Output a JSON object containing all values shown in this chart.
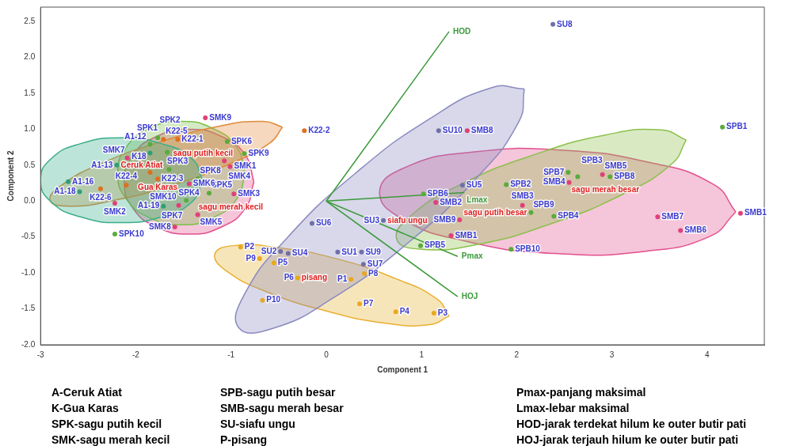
{
  "chart_data": {
    "type": "scatter",
    "xlabel": "Component 1",
    "ylabel": "Component 2",
    "xlim": [
      -3,
      4.6
    ],
    "xticks": [
      -3,
      -2,
      -1,
      0,
      1,
      2,
      3,
      4
    ],
    "ylim": [
      -2,
      2.7
    ],
    "yticks": [
      {
        "value": -2,
        "label": "-2.0"
      },
      {
        "value": -1.5,
        "label": "-1.5"
      },
      {
        "value": -1,
        "label": "-1.0"
      },
      {
        "value": -0.5,
        "label": "-0.5"
      },
      {
        "value": 0,
        "label": "0.0"
      },
      {
        "value": 0.5,
        "label": "0.5"
      },
      {
        "value": 1,
        "label": "1.0"
      },
      {
        "value": 1.5,
        "label": "1.5"
      },
      {
        "value": 2,
        "label": "2.0"
      },
      {
        "value": 2.5,
        "label": "2.5"
      }
    ],
    "series": [
      {
        "type": "area",
        "color": "#3aae8a",
        "x": [
          -1.3,
          -1.41,
          -1.73,
          -2.15,
          -2.58,
          -2.89,
          -3.0,
          -2.89,
          -2.58,
          -2.15,
          -1.73,
          -1.41,
          -1.3
        ],
        "values": [
          0.29,
          0.59,
          0.8,
          0.88,
          0.8,
          0.59,
          0.29,
          -0.01,
          -0.22,
          -0.3,
          -0.22,
          -0.01,
          0.29
        ]
      },
      {
        "type": "area",
        "color": "#e08a3a",
        "x": [
          -0.46,
          -0.59,
          -1.01,
          -1.62,
          -2.23,
          -2.7,
          -2.9,
          -2.77,
          -2.35,
          -1.75,
          -1.13,
          -0.66,
          -0.46
        ],
        "values": [
          1.03,
          0.81,
          0.52,
          0.22,
          0.01,
          -0.07,
          0.01,
          0.23,
          0.53,
          0.82,
          1.04,
          1.11,
          1.03
        ]
      },
      {
        "type": "area",
        "color": "#7cc04a",
        "x": [
          -0.85,
          -0.94,
          -1.19,
          -1.52,
          -1.86,
          -2.1,
          -2.19,
          -2.1,
          -1.86,
          -1.52,
          -1.19,
          -0.94,
          -0.85
        ],
        "values": [
          0.39,
          0.75,
          1.01,
          1.11,
          1.01,
          0.75,
          0.39,
          0.03,
          -0.23,
          -0.33,
          -0.23,
          0.03,
          0.39
        ]
      },
      {
        "type": "area",
        "color": "#e2508e",
        "x": [
          -0.76,
          -0.85,
          -1.1,
          -1.44,
          -1.78,
          -2.03,
          -2.12,
          -2.03,
          -1.78,
          -1.44,
          -1.1,
          -0.85,
          -0.76
        ],
        "values": [
          0.27,
          0.64,
          0.9,
          1.0,
          0.9,
          0.64,
          0.27,
          -0.1,
          -0.36,
          -0.46,
          -0.36,
          -0.1,
          0.27
        ]
      },
      {
        "type": "area",
        "color": "#8a8ac0",
        "x": [
          2.08,
          2.02,
          1.57,
          0.86,
          0.07,
          -0.58,
          -0.92,
          -0.86,
          -0.41,
          0.3,
          1.09,
          1.74,
          2.08
        ],
        "values": [
          1.56,
          1.1,
          0.31,
          -0.58,
          -1.35,
          -1.78,
          -1.76,
          -1.3,
          -0.51,
          0.38,
          1.15,
          1.58,
          1.56
        ]
      },
      {
        "type": "area",
        "color": "#e8b030",
        "x": [
          1.29,
          1.09,
          0.62,
          0.0,
          -0.61,
          -1.04,
          -1.17,
          -0.97,
          -0.5,
          0.13,
          0.73,
          1.16,
          1.29
        ],
        "values": [
          -1.6,
          -1.72,
          -1.7,
          -1.53,
          -1.27,
          -0.98,
          -0.74,
          -0.62,
          -0.65,
          -0.81,
          -1.08,
          -1.36,
          -1.6
        ]
      },
      {
        "type": "area",
        "color": "#8cc04a",
        "x": [
          3.78,
          3.63,
          3.12,
          2.37,
          1.6,
          1.0,
          0.74,
          0.89,
          1.41,
          2.15,
          2.93,
          3.52,
          3.78
        ],
        "values": [
          0.85,
          0.52,
          0.1,
          -0.31,
          -0.6,
          -0.67,
          -0.53,
          -0.2,
          0.23,
          0.63,
          0.92,
          0.99,
          0.85
        ]
      },
      {
        "type": "area",
        "color": "#e2508e",
        "x": [
          4.3,
          4.03,
          3.34,
          2.4,
          1.47,
          0.8,
          0.56,
          0.83,
          1.52,
          2.46,
          3.39,
          4.07,
          4.3
        ],
        "values": [
          -0.15,
          -0.49,
          -0.7,
          -0.73,
          -0.56,
          -0.25,
          0.13,
          0.47,
          0.68,
          0.71,
          0.54,
          0.23,
          -0.15
        ]
      },
      {
        "type": "line",
        "name": "HOD",
        "color": "#3a9a3a",
        "x": [
          0,
          1.29
        ],
        "values": [
          0,
          2.36
        ]
      },
      {
        "type": "line",
        "name": "Lmax",
        "color": "#3a9a3a",
        "x": [
          0,
          1.45
        ],
        "values": [
          0,
          0.12
        ]
      },
      {
        "type": "line",
        "name": "Pmax",
        "color": "#3a9a3a",
        "x": [
          0,
          1.38
        ],
        "values": [
          0,
          -0.77
        ]
      },
      {
        "type": "line",
        "name": "HOJ",
        "color": "#3a9a3a",
        "x": [
          0,
          1.38
        ],
        "values": [
          0,
          -1.33
        ]
      },
      {
        "name": "Ceruk Atiat",
        "marker": "circle",
        "color": "#2e9e78",
        "x": [
          -2.71,
          -2.59,
          -2.2,
          -1.85,
          -1.71
        ],
        "values": [
          0.27,
          0.13,
          0.5,
          0.67,
          -0.07
        ]
      },
      {
        "name": "Gua Karas",
        "marker": "circle",
        "color": "#e07020",
        "x": [
          -1.56,
          -1.71,
          -1.85,
          -1.77,
          -2.1,
          -2.37,
          -0.23
        ],
        "values": [
          0.86,
          0.86,
          0.4,
          0.31,
          0.22,
          0.17,
          0.98
        ]
      },
      {
        "name": "sagu putih kecil",
        "marker": "circle",
        "color": "#5aab3c",
        "x": [
          -1.67,
          -1.85,
          -1.77,
          -1.65,
          -1.23,
          -1.04,
          -1.47,
          -1.35,
          -0.86,
          -2.22
        ],
        "values": [
          0.68,
          0.79,
          0.88,
          0.44,
          0.11,
          0.83,
          0.01,
          0.31,
          0.66,
          -0.46
        ]
      },
      {
        "name": "sagu merah kecil",
        "marker": "circle",
        "color": "#e0407a",
        "x": [
          -1.01,
          -2.22,
          -0.97,
          -1.07,
          -1.35,
          -1.44,
          -2.09,
          -1.59,
          -1.27,
          -1.55
        ],
        "values": [
          0.48,
          -0.03,
          0.1,
          0.56,
          -0.19,
          0.24,
          0.6,
          -0.36,
          1.16,
          -0.06
        ]
      },
      {
        "name": "siafu ungu",
        "marker": "circle",
        "color": "#7070a8",
        "x": [
          0.12,
          -0.48,
          0.6,
          -0.4,
          1.43,
          -0.15,
          0.39,
          2.38,
          0.37,
          1.18
        ],
        "values": [
          -0.71,
          -0.7,
          -0.27,
          -0.73,
          0.22,
          -0.31,
          -0.88,
          2.46,
          -0.71,
          0.98
        ]
      },
      {
        "name": "pisang",
        "marker": "circle",
        "color": "#e8a820",
        "x": [
          0.26,
          -0.9,
          1.13,
          0.73,
          -0.55,
          -0.3,
          0.35,
          0.4,
          -0.7,
          -0.67
        ],
        "values": [
          -1.09,
          -0.64,
          -1.56,
          -1.54,
          -0.86,
          -1.07,
          -1.43,
          -1.01,
          -0.8,
          -1.38
        ]
      },
      {
        "name": "sagu putih besar",
        "marker": "circle",
        "color": "#5aab3c",
        "x": [
          4.16,
          1.89,
          2.64,
          2.39,
          0.99,
          1.02,
          2.54,
          2.98,
          2.15,
          1.94
        ],
        "values": [
          1.03,
          0.23,
          0.34,
          -0.21,
          -0.62,
          0.1,
          0.4,
          0.34,
          -0.16,
          -0.67
        ]
      },
      {
        "name": "sagu merah besar",
        "marker": "circle",
        "color": "#e0407a",
        "x": [
          1.31,
          1.15,
          2.06,
          2.55,
          2.9,
          3.72,
          3.48,
          1.48,
          1.4,
          4.35
        ],
        "values": [
          -0.48,
          -0.02,
          -0.06,
          0.26,
          0.37,
          -0.41,
          -0.22,
          0.98,
          -0.26,
          -0.17
        ]
      }
    ],
    "annotations": [
      "A-Ceruk Atiat",
      "K-Gua Karas",
      "SPK-sagu putih kecil",
      "SMK-sagu merah kecil",
      "SPB-sagu putih besar",
      "SMB-sagu merah besar",
      "SU-siafu ungu",
      "P-pisang",
      "Pmax-panjang maksimal",
      "Lmax-lebar maksimal",
      "HOD-jarak terdekat hilum ke outer butir pati",
      "HOJ-jarak terjauh hilum ke outer butir pati",
      {
        "text": "A1-16",
        "x": -2.71,
        "y": 0.27
      },
      {
        "text": "A1-18",
        "x": -2.59,
        "y": 0.13
      },
      {
        "text": "A1-13",
        "x": -2.2,
        "y": 0.5
      },
      {
        "text": "A1-12",
        "x": -1.85,
        "y": 0.67
      },
      {
        "text": "A1-19",
        "x": -1.71,
        "y": -0.07
      },
      {
        "text": "K22-1",
        "x": -1.56,
        "y": 0.86
      },
      {
        "text": "K22-5",
        "x": -1.71,
        "y": 0.86
      },
      {
        "text": "K18",
        "x": -1.85,
        "y": 0.4
      },
      {
        "text": "K22-3",
        "x": -1.77,
        "y": 0.31
      },
      {
        "text": "K22-4",
        "x": -2.1,
        "y": 0.22
      },
      {
        "text": "K22-6",
        "x": -2.37,
        "y": 0.17
      },
      {
        "text": "K22-2",
        "x": -0.23,
        "y": 0.98
      },
      {
        "text": "SPK1",
        "x": -1.67,
        "y": 0.68
      },
      {
        "text": "SPK2",
        "x": -1.85,
        "y": 0.79
      },
      {
        "text": "SPK3",
        "x": -1.77,
        "y": 0.88
      },
      {
        "text": "SPK4",
        "x": -1.65,
        "y": 0.44
      },
      {
        "text": "SPK5",
        "x": -1.23,
        "y": 0.11
      },
      {
        "text": "SPK6",
        "x": -1.04,
        "y": 0.83
      },
      {
        "text": "SPK7",
        "x": -1.47,
        "y": 0.01
      },
      {
        "text": "SPK8",
        "x": -1.35,
        "y": 0.31
      },
      {
        "text": "SPK9",
        "x": -0.86,
        "y": 0.66
      },
      {
        "text": "SPK10",
        "x": -2.22,
        "y": -0.46
      },
      {
        "text": "SMK1",
        "x": -1.01,
        "y": 0.48
      },
      {
        "text": "SMK2",
        "x": -2.22,
        "y": -0.03
      },
      {
        "text": "SMK3",
        "x": -0.97,
        "y": 0.1
      },
      {
        "text": "SMK4",
        "x": -1.07,
        "y": 0.56
      },
      {
        "text": "SMK5",
        "x": -1.35,
        "y": -0.19
      },
      {
        "text": "SMK6",
        "x": -1.44,
        "y": 0.24
      },
      {
        "text": "SMK7",
        "x": -2.09,
        "y": 0.6
      },
      {
        "text": "SMK8",
        "x": -1.59,
        "y": -0.36
      },
      {
        "text": "SMK9",
        "x": -1.27,
        "y": 1.16
      },
      {
        "text": "SMK10",
        "x": -1.55,
        "y": -0.06
      },
      {
        "text": "SU1",
        "x": 0.12,
        "y": -0.71
      },
      {
        "text": "SU2",
        "x": -0.48,
        "y": -0.7
      },
      {
        "text": "SU3",
        "x": 0.6,
        "y": -0.27
      },
      {
        "text": "SU4",
        "x": -0.4,
        "y": -0.73
      },
      {
        "text": "SU5",
        "x": 1.43,
        "y": 0.22
      },
      {
        "text": "SU6",
        "x": -0.15,
        "y": -0.31
      },
      {
        "text": "SU7",
        "x": 0.39,
        "y": -0.88
      },
      {
        "text": "SU8",
        "x": 2.38,
        "y": 2.46
      },
      {
        "text": "SU9",
        "x": 0.37,
        "y": -0.71
      },
      {
        "text": "SU10",
        "x": 1.18,
        "y": 0.98
      },
      {
        "text": "P1",
        "x": 0.26,
        "y": -1.09
      },
      {
        "text": "P2",
        "x": -0.9,
        "y": -0.64
      },
      {
        "text": "P3",
        "x": 1.13,
        "y": -1.56
      },
      {
        "text": "P4",
        "x": 0.73,
        "y": -1.54
      },
      {
        "text": "P5",
        "x": -0.55,
        "y": -0.86
      },
      {
        "text": "P6",
        "x": -0.3,
        "y": -1.07
      },
      {
        "text": "P7",
        "x": 0.35,
        "y": -1.43
      },
      {
        "text": "P8",
        "x": 0.4,
        "y": -1.01
      },
      {
        "text": "P9",
        "x": -0.7,
        "y": -0.8
      },
      {
        "text": "P10",
        "x": -0.67,
        "y": -1.38
      },
      {
        "text": "SPB1",
        "x": 4.16,
        "y": 1.03
      },
      {
        "text": "SPB2",
        "x": 1.89,
        "y": 0.23
      },
      {
        "text": "SPB3",
        "x": 2.64,
        "y": 0.34
      },
      {
        "text": "SPB4",
        "x": 2.39,
        "y": -0.21
      },
      {
        "text": "SPB5",
        "x": 0.99,
        "y": -0.62
      },
      {
        "text": "SPB6",
        "x": 1.02,
        "y": 0.1
      },
      {
        "text": "SPB7",
        "x": 2.54,
        "y": 0.4
      },
      {
        "text": "SPB8",
        "x": 2.98,
        "y": 0.34
      },
      {
        "text": "SPB9",
        "x": 2.15,
        "y": -0.16
      },
      {
        "text": "SPB10",
        "x": 1.94,
        "y": -0.67
      },
      {
        "text": "SMB1",
        "x": 1.31,
        "y": -0.48
      },
      {
        "text": "SMB2",
        "x": 1.15,
        "y": -0.02
      },
      {
        "text": "SMB3",
        "x": 2.06,
        "y": -0.06
      },
      {
        "text": "SMB4",
        "x": 2.55,
        "y": 0.26
      },
      {
        "text": "SMB5",
        "x": 2.9,
        "y": 0.37
      },
      {
        "text": "SMB6",
        "x": 3.72,
        "y": -0.41
      },
      {
        "text": "SMB7",
        "x": 3.48,
        "y": -0.22
      },
      {
        "text": "SMB8",
        "x": 1.48,
        "y": 0.98
      },
      {
        "text": "SMB9",
        "x": 1.4,
        "y": -0.26
      },
      {
        "text": "SMB1",
        "x": 4.35,
        "y": -0.17
      }
    ]
  }
}
